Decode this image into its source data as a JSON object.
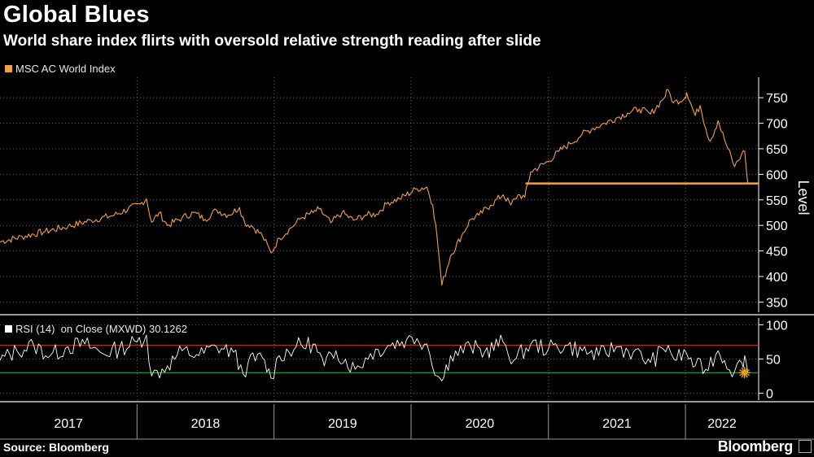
{
  "header": {
    "title": "Global Blues",
    "subtitle": "World share index flirts with oversold relative strength reading after slide"
  },
  "footer": {
    "source": "Source: Bloomberg",
    "brand": "Bloomberg"
  },
  "colors": {
    "background": "#000000",
    "index_line": "#f0a04b",
    "rsi_line": "#ffffff",
    "overbought_line": "#c0392b",
    "oversold_line": "#2e9e3a",
    "grid": "#666666",
    "marker": "#e0a020"
  },
  "chart_data": [
    {
      "type": "line",
      "name": "price-panel",
      "legend": "MSC AC World Index",
      "ylabel": "Level",
      "ylim": [
        330,
        790
      ],
      "yticks": [
        350,
        400,
        450,
        500,
        550,
        600,
        650,
        700,
        750
      ],
      "x_range": [
        "2017-01-01",
        "2022-07-15"
      ],
      "x_tick_labels": [
        "2017",
        "2018",
        "2019",
        "2020",
        "2021",
        "2022"
      ],
      "horizontal_line": {
        "value": 582,
        "from": "2020-11-01",
        "to": "2022-07-15"
      },
      "series": [
        {
          "name": "MSC AC World Index",
          "x": [
            "2017-01-01",
            "2017-03-01",
            "2017-05-01",
            "2017-07-01",
            "2017-09-01",
            "2017-11-01",
            "2018-01-10",
            "2018-01-26",
            "2018-02-09",
            "2018-03-01",
            "2018-03-23",
            "2018-05-01",
            "2018-06-01",
            "2018-07-01",
            "2018-08-01",
            "2018-09-01",
            "2018-10-01",
            "2018-10-15",
            "2018-11-01",
            "2018-12-01",
            "2018-12-24",
            "2019-01-15",
            "2019-02-15",
            "2019-03-15",
            "2019-04-15",
            "2019-05-01",
            "2019-06-01",
            "2019-07-01",
            "2019-08-01",
            "2019-09-01",
            "2019-10-01",
            "2019-11-01",
            "2019-12-01",
            "2020-01-17",
            "2020-02-12",
            "2020-02-28",
            "2020-03-10",
            "2020-03-23",
            "2020-04-15",
            "2020-05-15",
            "2020-06-08",
            "2020-06-30",
            "2020-07-31",
            "2020-09-02",
            "2020-09-23",
            "2020-10-12",
            "2020-10-30",
            "2020-11-15",
            "2020-12-31",
            "2021-01-29",
            "2021-02-28",
            "2021-03-31",
            "2021-04-30",
            "2021-05-31",
            "2021-06-30",
            "2021-07-31",
            "2021-08-31",
            "2021-09-30",
            "2021-10-31",
            "2021-11-16",
            "2021-11-30",
            "2021-12-31",
            "2022-01-04",
            "2022-01-27",
            "2022-02-09",
            "2022-02-24",
            "2022-03-08",
            "2022-03-29",
            "2022-04-15",
            "2022-05-12",
            "2022-05-31",
            "2022-06-08",
            "2022-06-16"
          ],
          "values": [
            468,
            478,
            488,
            498,
            510,
            520,
            542,
            552,
            506,
            525,
            500,
            515,
            525,
            512,
            530,
            520,
            535,
            505,
            500,
            480,
            446,
            475,
            495,
            515,
            525,
            532,
            505,
            525,
            510,
            520,
            522,
            545,
            552,
            572,
            575,
            540,
            480,
            383,
            440,
            480,
            512,
            520,
            540,
            560,
            540,
            560,
            555,
            605,
            625,
            645,
            660,
            678,
            690,
            700,
            710,
            720,
            728,
            718,
            745,
            765,
            740,
            750,
            760,
            715,
            735,
            690,
            665,
            705,
            668,
            615,
            640,
            645,
            582
          ]
        }
      ]
    },
    {
      "type": "line",
      "name": "rsi-panel",
      "legend": "RSI (14)  on Close (MXWD) 30.1262",
      "ylim": [
        -10,
        110
      ],
      "yticks": [
        0,
        50,
        100
      ],
      "overbought": 70,
      "oversold": 30,
      "last_value": 30.1262,
      "series": [
        {
          "name": "RSI (14)",
          "x": [
            "2017-01-01",
            "2017-02-15",
            "2017-04-01",
            "2017-05-15",
            "2017-07-01",
            "2017-08-15",
            "2017-10-01",
            "2017-11-15",
            "2018-01-01",
            "2018-01-26",
            "2018-02-09",
            "2018-03-23",
            "2018-05-01",
            "2018-06-15",
            "2018-08-01",
            "2018-09-15",
            "2018-10-11",
            "2018-10-24",
            "2018-12-01",
            "2018-12-24",
            "2019-01-15",
            "2019-03-01",
            "2019-04-15",
            "2019-05-15",
            "2019-06-15",
            "2019-08-05",
            "2019-09-15",
            "2019-11-01",
            "2019-12-20",
            "2020-01-17",
            "2020-02-12",
            "2020-03-12",
            "2020-03-23",
            "2020-04-15",
            "2020-06-08",
            "2020-07-15",
            "2020-09-02",
            "2020-10-01",
            "2020-11-15",
            "2021-01-01",
            "2021-02-15",
            "2021-04-01",
            "2021-05-15",
            "2021-07-01",
            "2021-08-15",
            "2021-09-30",
            "2021-11-16",
            "2021-12-01",
            "2022-01-04",
            "2022-01-27",
            "2022-02-24",
            "2022-03-29",
            "2022-04-15",
            "2022-05-12",
            "2022-05-31",
            "2022-06-08",
            "2022-06-16"
          ],
          "values": [
            48,
            62,
            70,
            55,
            68,
            72,
            58,
            65,
            75,
            85,
            25,
            40,
            62,
            55,
            68,
            60,
            28,
            45,
            52,
            22,
            55,
            68,
            72,
            40,
            62,
            35,
            58,
            70,
            78,
            80,
            72,
            25,
            18,
            55,
            68,
            60,
            75,
            48,
            72,
            65,
            70,
            62,
            55,
            68,
            60,
            45,
            70,
            50,
            58,
            40,
            35,
            62,
            48,
            32,
            45,
            55,
            30
          ]
        }
      ]
    }
  ]
}
